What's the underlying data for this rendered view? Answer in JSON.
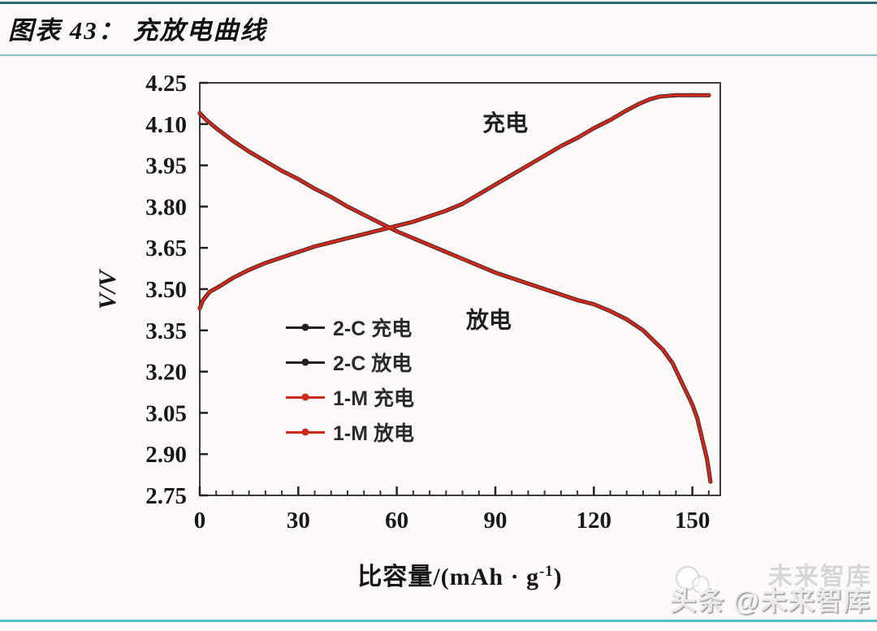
{
  "header": {
    "title": "图表 43： 充放电曲线"
  },
  "watermark": {
    "text": "头条 @未来智库",
    "ghost": "未来智库"
  },
  "chart_data": {
    "type": "line",
    "title": "",
    "xlabel": "比容量/(mAh · g⁻¹)",
    "xlabel_parts": {
      "main": "比容量/(mAh · g",
      "sup": "-1",
      "end": ")"
    },
    "ylabel": "V/V",
    "xlim": [
      0,
      158.5
    ],
    "ylim": [
      2.75,
      4.25
    ],
    "xticks": [
      "0",
      "30",
      "60",
      "90",
      "120",
      "150"
    ],
    "x_minor_step": 5,
    "x_minor_max": 155,
    "yticks": [
      "2.75",
      "2.90",
      "3.05",
      "3.20",
      "3.35",
      "3.50",
      "3.65",
      "3.80",
      "3.95",
      "4.10",
      "4.25"
    ],
    "grid": false,
    "legend_position": "inside-left-middle",
    "annotations": [
      {
        "text": "充电",
        "x": 93,
        "y": 4.105
      },
      {
        "text": "放电",
        "x": 88,
        "y": 3.39
      }
    ],
    "series": [
      {
        "name": "2-C 充电",
        "color": "#241f1f",
        "width": 5,
        "marker_r": 2.6,
        "x": [
          0,
          1,
          3,
          6,
          10,
          15,
          20,
          25,
          30,
          35,
          40,
          45,
          50,
          55,
          60,
          65,
          70,
          75,
          80,
          85,
          90,
          95,
          100,
          105,
          110,
          115,
          120,
          125,
          130,
          134,
          137,
          140,
          145,
          150,
          155
        ],
        "y": [
          3.43,
          3.46,
          3.49,
          3.51,
          3.54,
          3.57,
          3.595,
          3.615,
          3.635,
          3.655,
          3.67,
          3.685,
          3.7,
          3.715,
          3.73,
          3.745,
          3.765,
          3.785,
          3.81,
          3.845,
          3.88,
          3.915,
          3.95,
          3.985,
          4.02,
          4.05,
          4.085,
          4.115,
          4.15,
          4.175,
          4.19,
          4.2,
          4.205,
          4.205,
          4.205
        ]
      },
      {
        "name": "2-C 放电",
        "color": "#241f1f",
        "width": 5,
        "marker_r": 2.6,
        "x": [
          0,
          2,
          5,
          10,
          15,
          20,
          25,
          30,
          35,
          40,
          45,
          50,
          55,
          60,
          65,
          70,
          75,
          80,
          85,
          90,
          95,
          100,
          105,
          110,
          115,
          120,
          125,
          130,
          135,
          138,
          141,
          144,
          146,
          148,
          150,
          151.5,
          152.5,
          153.5,
          154.5,
          155,
          155.5
        ],
        "y": [
          4.14,
          4.115,
          4.085,
          4.04,
          4.0,
          3.965,
          3.93,
          3.9,
          3.865,
          3.835,
          3.8,
          3.77,
          3.74,
          3.71,
          3.685,
          3.66,
          3.635,
          3.61,
          3.585,
          3.56,
          3.54,
          3.52,
          3.5,
          3.48,
          3.46,
          3.445,
          3.42,
          3.39,
          3.35,
          3.315,
          3.28,
          3.23,
          3.18,
          3.13,
          3.08,
          3.03,
          2.98,
          2.93,
          2.88,
          2.84,
          2.8
        ]
      },
      {
        "name": "1-M 充电",
        "color": "#cd2a1d",
        "width": 3.4,
        "marker_r": 2.1,
        "x": [
          0,
          1,
          3,
          6,
          10,
          15,
          20,
          25,
          30,
          35,
          40,
          45,
          50,
          55,
          60,
          65,
          70,
          75,
          80,
          85,
          90,
          95,
          100,
          105,
          110,
          115,
          120,
          125,
          130,
          134,
          137,
          140,
          145,
          150,
          155
        ],
        "y": [
          3.43,
          3.46,
          3.49,
          3.51,
          3.54,
          3.57,
          3.595,
          3.615,
          3.635,
          3.655,
          3.67,
          3.685,
          3.7,
          3.715,
          3.73,
          3.745,
          3.765,
          3.785,
          3.81,
          3.845,
          3.88,
          3.915,
          3.95,
          3.985,
          4.02,
          4.05,
          4.085,
          4.115,
          4.15,
          4.175,
          4.19,
          4.2,
          4.205,
          4.205,
          4.205
        ]
      },
      {
        "name": "1-M 放电",
        "color": "#cd2a1d",
        "width": 3.4,
        "marker_r": 2.1,
        "x": [
          0,
          2,
          5,
          10,
          15,
          20,
          25,
          30,
          35,
          40,
          45,
          50,
          55,
          60,
          65,
          70,
          75,
          80,
          85,
          90,
          95,
          100,
          105,
          110,
          115,
          120,
          125,
          130,
          135,
          138,
          141,
          144,
          146,
          148,
          150,
          151.5,
          152.5,
          153.5,
          154.5,
          155,
          155.5
        ],
        "y": [
          4.14,
          4.115,
          4.085,
          4.04,
          4.0,
          3.965,
          3.93,
          3.9,
          3.865,
          3.835,
          3.8,
          3.77,
          3.74,
          3.71,
          3.685,
          3.66,
          3.635,
          3.61,
          3.585,
          3.56,
          3.54,
          3.52,
          3.5,
          3.48,
          3.46,
          3.445,
          3.42,
          3.39,
          3.35,
          3.315,
          3.28,
          3.23,
          3.18,
          3.13,
          3.08,
          3.03,
          2.98,
          2.93,
          2.88,
          2.84,
          2.8
        ]
      }
    ]
  }
}
